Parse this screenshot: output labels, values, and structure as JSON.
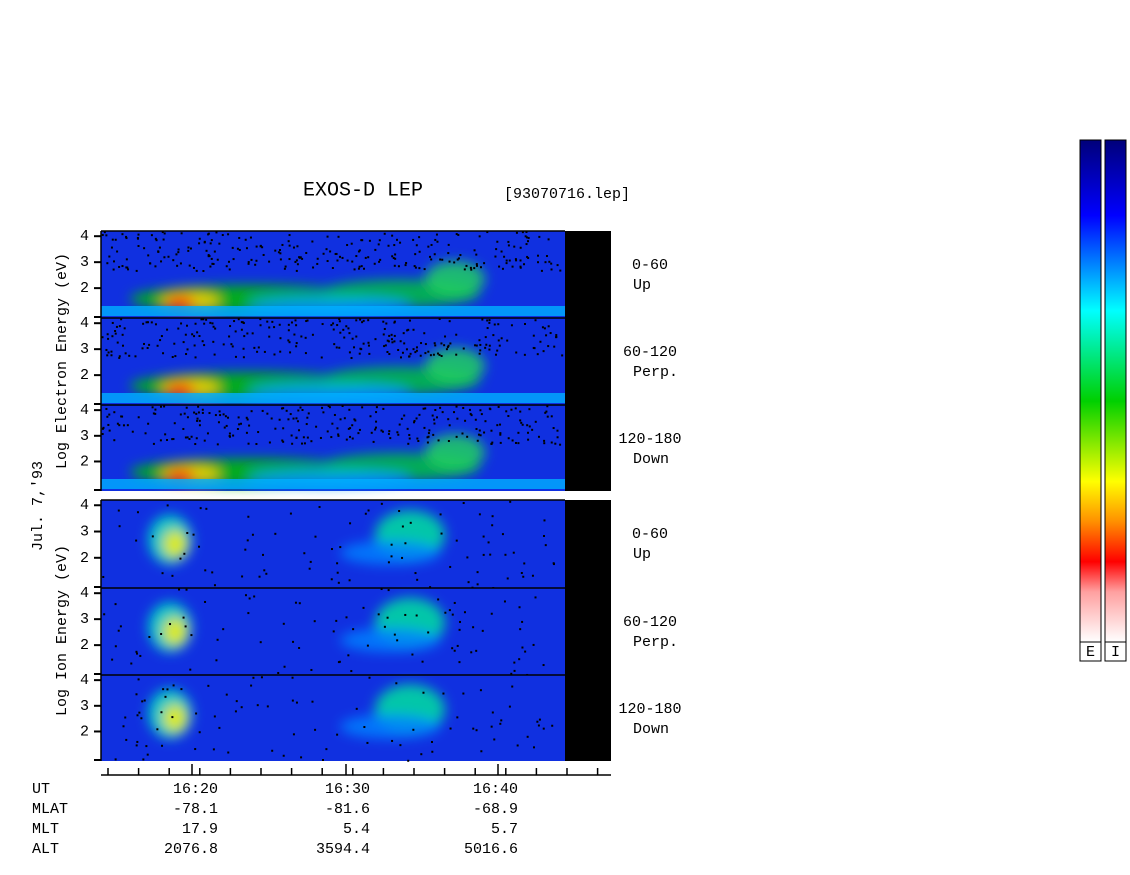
{
  "title": "EXOS-D LEP",
  "file": "[93070716.lep]",
  "date": "Jul. 7,'93",
  "yticks": [
    4,
    3,
    2
  ],
  "ylim": [
    0.85,
    4.2
  ],
  "groups": [
    {
      "ylabel": "Log  Electron  Energy (eV)",
      "panels": [
        {
          "range": "0-60",
          "dir": "Up"
        },
        {
          "range": "60-120",
          "dir": "Perp."
        },
        {
          "range": "120-180",
          "dir": "Down"
        }
      ]
    },
    {
      "ylabel": "Log  Ion  Energy (eV)",
      "panels": [
        {
          "range": "0-60",
          "dir": "Up"
        },
        {
          "range": "60-120",
          "dir": "Perp."
        },
        {
          "range": "120-180",
          "dir": "Down"
        }
      ]
    }
  ],
  "orbit": {
    "labels": [
      "UT",
      "MLAT",
      "MLT",
      "ALT"
    ],
    "columns": [
      {
        "UT": "16:20",
        "MLAT": -78.1,
        "MLT": 17.9,
        "ALT": 2076.8
      },
      {
        "UT": "16:30",
        "MLAT": -81.6,
        "MLT": 5.4,
        "ALT": 3594.4
      },
      {
        "UT": "16:40",
        "MLAT": -68.9,
        "MLT": 5.7,
        "ALT": 5016.6
      }
    ]
  },
  "colorbars": [
    "E",
    "I"
  ]
}
